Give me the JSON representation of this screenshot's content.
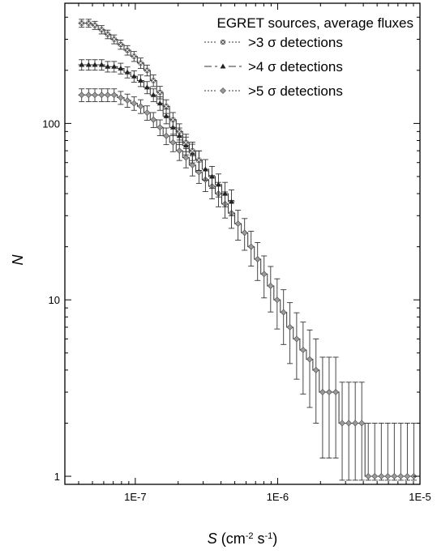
{
  "chart_data": {
    "type": "line",
    "title": "",
    "xlabel": "S (cm⁻² s⁻¹)",
    "xlabel_parts": {
      "symbol": "S",
      "unit_open": " (cm",
      "exp1": "-2",
      "mid": " s",
      "exp2": "-1",
      "close": ")"
    },
    "ylabel": "N",
    "x_scale": "log",
    "y_scale": "log",
    "xlim": [
      3.2e-08,
      1e-05
    ],
    "ylim": [
      0.9,
      480
    ],
    "x_ticks": [
      {
        "value": 1e-07,
        "label": "1E-7"
      },
      {
        "value": 1e-06,
        "label": "1E-6"
      },
      {
        "value": 1e-05,
        "label": "1E-5"
      }
    ],
    "y_ticks": [
      {
        "value": 1,
        "label": "1"
      },
      {
        "value": 10,
        "label": "10"
      },
      {
        "value": 100,
        "label": "100"
      }
    ],
    "grid": false,
    "legend": {
      "title": "EGRET sources, average fluxes",
      "placement": "top-right",
      "entries": [
        {
          "label": ">3 σ detections",
          "marker": "x-square",
          "color": "#555555",
          "line": "dotted"
        },
        {
          "label": ">4 σ detections",
          "marker": "triangle",
          "color": "#222222",
          "line": "dashed"
        },
        {
          "label": ">5 σ detections",
          "marker": "diamond",
          "color": "#9a9a9a",
          "line": "dotted"
        }
      ]
    },
    "errors": "poisson",
    "series": [
      {
        "name": ">3 σ detections",
        "x": [
          4.2e-08,
          4.7e-08,
          5.2e-08,
          5.8e-08,
          6.4e-08,
          7.1e-08,
          7.9e-08,
          8.8e-08,
          9.8e-08,
          1.09e-07,
          1.21e-07,
          1.34e-07,
          1.49e-07,
          1.65e-07,
          1.84e-07,
          2.04e-07,
          2.27e-07,
          2.52e-07,
          2.8e-07
        ],
        "values": [
          370,
          370,
          360,
          340,
          320,
          300,
          280,
          260,
          240,
          220,
          200,
          175,
          150,
          125,
          105,
          90,
          78,
          70,
          62
        ]
      },
      {
        "name": ">4 σ detections",
        "x": [
          4.2e-08,
          4.7e-08,
          5.2e-08,
          5.8e-08,
          6.4e-08,
          7.1e-08,
          7.9e-08,
          8.8e-08,
          9.8e-08,
          1.09e-07,
          1.21e-07,
          1.34e-07,
          1.49e-07,
          1.65e-07,
          1.84e-07,
          2.04e-07,
          2.27e-07,
          2.52e-07,
          2.8e-07,
          3.11e-07,
          3.46e-07,
          3.84e-07,
          4.27e-07,
          4.74e-07
        ],
        "values": [
          215,
          215,
          215,
          215,
          210,
          210,
          205,
          195,
          185,
          175,
          160,
          145,
          130,
          110,
          95,
          85,
          75,
          68,
          62,
          55,
          50,
          45,
          40,
          36
        ]
      },
      {
        "name": ">5 σ detections",
        "x": [
          4.2e-08,
          4.7e-08,
          5.2e-08,
          5.8e-08,
          6.4e-08,
          7.1e-08,
          7.9e-08,
          8.8e-08,
          9.8e-08,
          1.09e-07,
          1.21e-07,
          1.34e-07,
          1.49e-07,
          1.65e-07,
          1.84e-07,
          2.04e-07,
          2.27e-07,
          2.52e-07,
          2.8e-07,
          3.11e-07,
          3.46e-07,
          3.84e-07,
          4.27e-07,
          4.74e-07,
          5.27e-07,
          5.86e-07,
          6.51e-07,
          7.23e-07,
          8.03e-07,
          8.93e-07,
          9.92e-07,
          1.1e-06,
          1.22e-06,
          1.36e-06,
          1.51e-06,
          1.68e-06,
          1.86e-06,
          2.07e-06,
          2.3e-06,
          2.56e-06,
          2.84e-06,
          3.16e-06,
          3.51e-06,
          3.9e-06,
          4.33e-06,
          4.81e-06,
          5.35e-06,
          5.94e-06,
          6.6e-06,
          7.33e-06,
          8.15e-06,
          9.05e-06
        ],
        "values": [
          145,
          145,
          145,
          145,
          145,
          145,
          140,
          135,
          130,
          125,
          115,
          105,
          95,
          85,
          78,
          70,
          64,
          58,
          53,
          48,
          44,
          40,
          35,
          31,
          27,
          24,
          20,
          17,
          14,
          12,
          10,
          8.5,
          7,
          6,
          5.2,
          4.6,
          4,
          3,
          3,
          3,
          2,
          2,
          2,
          2,
          1,
          1,
          1,
          1,
          1,
          1,
          1,
          1
        ]
      }
    ]
  }
}
